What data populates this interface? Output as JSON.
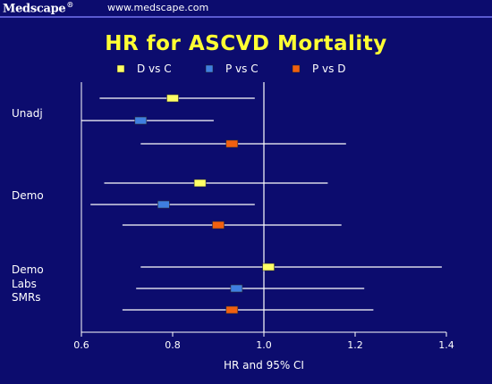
{
  "header": {
    "brand": "Medscape",
    "brand_mark": "®",
    "url": "www.medscape.com"
  },
  "colors": {
    "background": "#0c0c6e",
    "title": "#ffff33",
    "line": "#ffffff",
    "D vs C": "#ffff66",
    "P vs C": "#3f7fe0",
    "P vs D": "#f06010"
  },
  "chart_data": {
    "type": "forest",
    "title": "HR for ASCVD Mortality",
    "xlabel": "HR and 95% CI",
    "xlim": [
      0.6,
      1.4
    ],
    "xticks": [
      "0.6",
      "0.8",
      "1.0",
      "1.2",
      "1.4"
    ],
    "reference_line": 1.0,
    "legend": [
      "D vs C",
      "P vs C",
      "P vs D"
    ],
    "groups": [
      {
        "label": "Unadj",
        "rows": [
          {
            "series": "D vs C",
            "hr": 0.8,
            "lo": 0.64,
            "hi": 0.98
          },
          {
            "series": "P vs C",
            "hr": 0.73,
            "lo": 0.6,
            "hi": 0.89
          },
          {
            "series": "P vs D",
            "hr": 0.93,
            "lo": 0.73,
            "hi": 1.18
          }
        ]
      },
      {
        "label": "Demo",
        "rows": [
          {
            "series": "D vs C",
            "hr": 0.86,
            "lo": 0.65,
            "hi": 1.14
          },
          {
            "series": "P vs C",
            "hr": 0.78,
            "lo": 0.62,
            "hi": 0.98
          },
          {
            "series": "P vs D",
            "hr": 0.9,
            "lo": 0.69,
            "hi": 1.17
          }
        ]
      },
      {
        "label": "Demo\nLabs\nSMRs",
        "rows": [
          {
            "series": "D vs C",
            "hr": 1.01,
            "lo": 0.73,
            "hi": 1.39
          },
          {
            "series": "P vs C",
            "hr": 0.94,
            "lo": 0.72,
            "hi": 1.22
          },
          {
            "series": "P vs D",
            "hr": 0.93,
            "lo": 0.69,
            "hi": 1.24
          }
        ]
      }
    ]
  }
}
